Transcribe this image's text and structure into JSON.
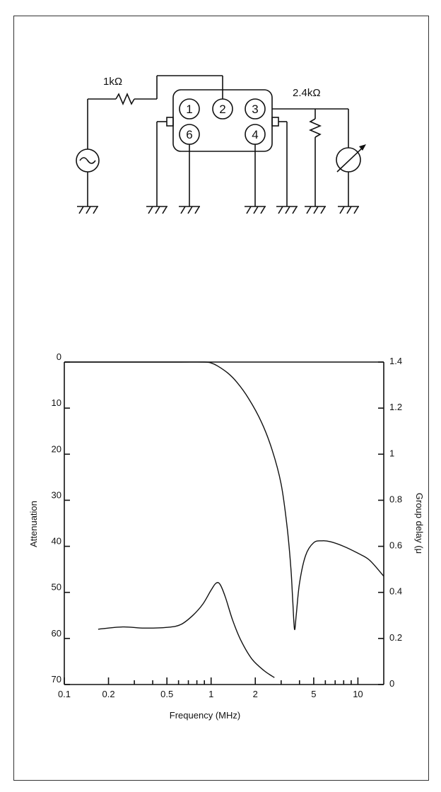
{
  "schematic": {
    "source_resistor_label": "1kΩ",
    "load_resistor_label": "2.4kΩ",
    "pin_labels": [
      "1",
      "2",
      "3",
      "6",
      "4"
    ],
    "source_icon": "ac-source-icon",
    "meter_icon": "meter-icon"
  },
  "chart_data": {
    "type": "line",
    "xlabel": "Frequency (MHz)",
    "ylabel": "Attenuation",
    "y2label": "Group delay (μ",
    "x_scale": "log",
    "xlim": [
      0.1,
      15
    ],
    "ylim": [
      0,
      70
    ],
    "y_inverted": true,
    "y2lim": [
      0,
      1.4
    ],
    "x_tick_labels": [
      "0.1",
      "0.2",
      "0.5",
      "1",
      "2",
      "5",
      "10"
    ],
    "x_tick_values": [
      0.1,
      0.2,
      0.5,
      1,
      2,
      5,
      10
    ],
    "y_tick_labels": [
      "0",
      "10",
      "20",
      "30",
      "40",
      "50",
      "60",
      "70"
    ],
    "y_tick_values": [
      0,
      10,
      20,
      30,
      40,
      50,
      60,
      70
    ],
    "y2_tick_labels": [
      "1.4",
      "1.2",
      "1",
      "0.8",
      "0.6",
      "0.4",
      "0.2",
      "0"
    ],
    "y2_tick_values": [
      1.4,
      1.2,
      1.0,
      0.8,
      0.6,
      0.4,
      0.2,
      0
    ],
    "grid": false,
    "series": [
      {
        "axis": "left",
        "x": [
          0.1,
          0.3,
          0.6,
          0.9,
          1.0,
          1.1,
          1.3,
          1.5,
          1.8,
          2.2,
          2.6,
          3.0,
          3.3,
          3.5,
          3.6,
          3.7,
          3.8,
          4.0,
          4.4,
          5.0,
          5.7,
          6.5,
          8.0,
          10.0,
          12.0,
          15.0
        ],
        "y": [
          0,
          0,
          0,
          0,
          0.2,
          0.8,
          2.4,
          4.4,
          7.9,
          13.0,
          19.0,
          26.5,
          36.0,
          45.0,
          52.0,
          58.0,
          55.0,
          48.0,
          42.0,
          39.2,
          38.8,
          39.0,
          40.0,
          41.5,
          43.0,
          46.5
        ]
      },
      {
        "axis": "right",
        "x": [
          0.17,
          0.25,
          0.35,
          0.5,
          0.62,
          0.75,
          0.88,
          1.0,
          1.08,
          1.15,
          1.25,
          1.4,
          1.6,
          1.9,
          2.3,
          2.7
        ],
        "y": [
          0.24,
          0.25,
          0.245,
          0.248,
          0.26,
          0.3,
          0.35,
          0.41,
          0.44,
          0.435,
          0.38,
          0.28,
          0.19,
          0.11,
          0.06,
          0.03
        ]
      }
    ]
  }
}
